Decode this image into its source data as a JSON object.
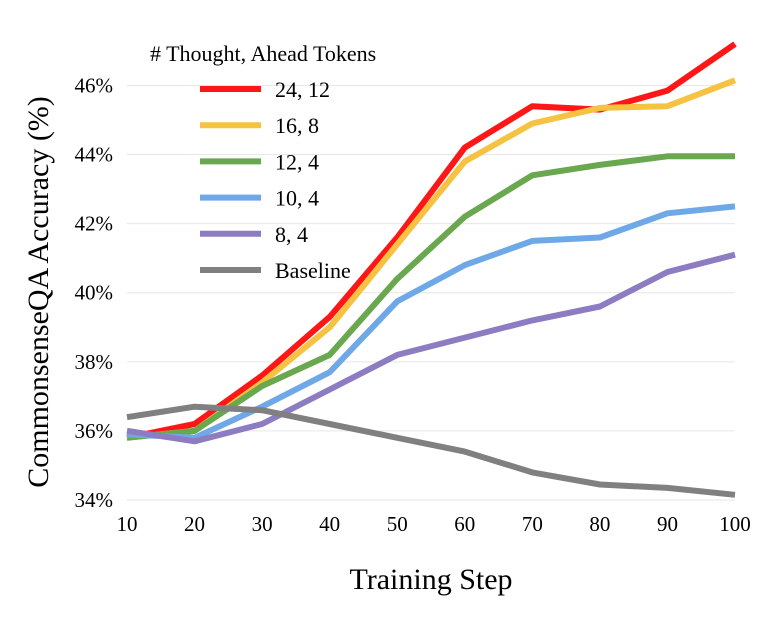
{
  "chart_data": {
    "type": "line",
    "title": "",
    "xlabel": "Training Step",
    "ylabel": "CommonsenseQA Accuracy (%)",
    "x": [
      10,
      20,
      30,
      40,
      50,
      60,
      70,
      80,
      90,
      100
    ],
    "x_ticks": [
      "10",
      "20",
      "30",
      "40",
      "50",
      "60",
      "70",
      "80",
      "90",
      "100"
    ],
    "y_ticks": [
      {
        "value": 34,
        "label": "34%"
      },
      {
        "value": 36,
        "label": "36%"
      },
      {
        "value": 38,
        "label": "38%"
      },
      {
        "value": 40,
        "label": "40%"
      },
      {
        "value": 42,
        "label": "42%"
      },
      {
        "value": 44,
        "label": "44%"
      },
      {
        "value": 46,
        "label": "46%"
      }
    ],
    "xlim": [
      10,
      100
    ],
    "ylim": [
      34,
      47.2
    ],
    "grid": "horizontal",
    "legend_title": "# Thought, Ahead Tokens",
    "legend_position": "top-left",
    "series": [
      {
        "name": "24, 12",
        "color": "#ff1616",
        "values": [
          35.8,
          36.2,
          37.6,
          39.3,
          41.6,
          44.2,
          45.4,
          45.3,
          45.85,
          47.2
        ]
      },
      {
        "name": "16, 8",
        "color": "#f5c242",
        "values": [
          35.8,
          36.0,
          37.4,
          39.0,
          41.4,
          43.8,
          44.9,
          45.35,
          45.4,
          46.15
        ]
      },
      {
        "name": "12, 4",
        "color": "#6aa84f",
        "values": [
          35.8,
          36.0,
          37.3,
          38.2,
          40.4,
          42.2,
          43.4,
          43.7,
          43.95,
          43.95
        ]
      },
      {
        "name": "10, 4",
        "color": "#6fa8e6",
        "values": [
          35.9,
          35.8,
          36.7,
          37.7,
          39.75,
          40.8,
          41.5,
          41.6,
          42.3,
          42.5
        ]
      },
      {
        "name": "8, 4",
        "color": "#8e7cc3",
        "values": [
          36.0,
          35.7,
          36.2,
          37.2,
          38.2,
          38.7,
          39.2,
          39.6,
          40.6,
          41.1
        ]
      },
      {
        "name": "Baseline",
        "color": "#808080",
        "values": [
          36.4,
          36.7,
          36.6,
          36.2,
          35.8,
          35.4,
          34.8,
          34.45,
          34.35,
          34.15
        ]
      }
    ]
  }
}
